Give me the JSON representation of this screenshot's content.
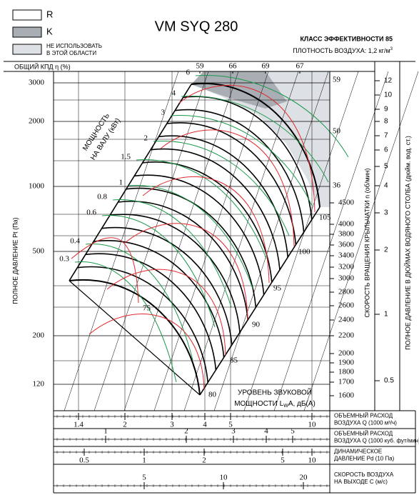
{
  "legend": [
    {
      "label": "R"
    },
    {
      "label": "K"
    },
    {
      "lines": [
        "НЕ ИСПОЛЬЗОВАТЬ",
        "В ЭТОЙ ОБЛАСТИ"
      ]
    }
  ],
  "title": "VM SYQ 280",
  "efficiency_class": "КЛАСС ЭФФЕКТИВНОСТИ 85",
  "air_density": {
    "text": "ПЛОТНОСТЬ ВОЗДУХА: 1,2 кг/м",
    "sup": "3"
  },
  "efficiency_axis": {
    "label": "ОБЩИЙ КПД η (%)",
    "top_ticks": [
      "59",
      "66",
      "69",
      "67"
    ],
    "right_ticks": [
      "59",
      "50",
      "36"
    ]
  },
  "pressure_axis": {
    "label": "ПОЛНОЕ ДАВЛЕНИЕ Pt (Па)",
    "ticks": [
      "3000",
      "2000",
      "1000",
      "500",
      "200",
      "120"
    ]
  },
  "speed_axis": {
    "label": "СКОРОСТЬ ВРАЩЕНИЯ КРЫЛЬЧАТКИ n (об/мин)",
    "ticks": [
      "4500",
      "4000",
      "3800",
      "3600",
      "3400",
      "3200",
      "3000",
      "2800",
      "2600",
      "2400",
      "2200",
      "2000",
      "1900",
      "1800",
      "1700",
      "1600"
    ]
  },
  "inch_axis": {
    "label": "ПОЛНОЕ ДАВЛЕНИЕ В ДЮЙМАХ ВОДЯНОГО СТОЛБА (дюйм. вод. ст.)",
    "ticks": [
      "12",
      "10",
      "9",
      "8",
      "7",
      "6",
      "5",
      "4",
      "3",
      "2",
      "1",
      "0.5"
    ]
  },
  "power": {
    "lines": [
      "МОЩНОСТЬ",
      "НА ВАЛУ (кВт)"
    ],
    "ticks": [
      "0.3",
      "0.4",
      "0.6",
      "0.8",
      "1",
      "1.5",
      "2",
      "3",
      "4",
      "6"
    ]
  },
  "sound": {
    "line1": "УРОВЕНЬ ЗВУКОВОЙ",
    "line2_pre": "МОЩНОСТИ L",
    "line2_sub": "W",
    "line2_post": "A, дБ(A)",
    "ticks": [
      "75",
      "80",
      "85",
      "90",
      "95",
      "100",
      "105"
    ]
  },
  "bottom_scales": [
    {
      "lines": [
        "ОБЪЕМНЫЙ РАСХОД",
        "ВОЗДУХА Q (1000 м³/ч)"
      ],
      "ticks": [
        "1.4",
        "2",
        "3",
        "4",
        "5",
        "10"
      ]
    },
    {
      "lines": [
        "ОБЪЕМНЫЙ РАСХОД",
        "ВОЗДУХА Q (1000 куб. фут/мин)"
      ],
      "ticks": [
        "1",
        "2",
        "3",
        "4",
        "5"
      ]
    },
    {
      "lines": [
        "ДИНАМИЧЕСКОЕ",
        "ДАВЛЕНИЕ Pd (10 Па)"
      ],
      "ticks": [
        "0.5",
        "1",
        "2",
        "5",
        "10"
      ]
    },
    {
      "lines": [
        "СКОРОСТЬ ВОЗДУХА",
        "НА ВЫХОДЕ C (м/с)"
      ],
      "ticks": [
        "5",
        "10",
        "20"
      ]
    }
  ]
}
